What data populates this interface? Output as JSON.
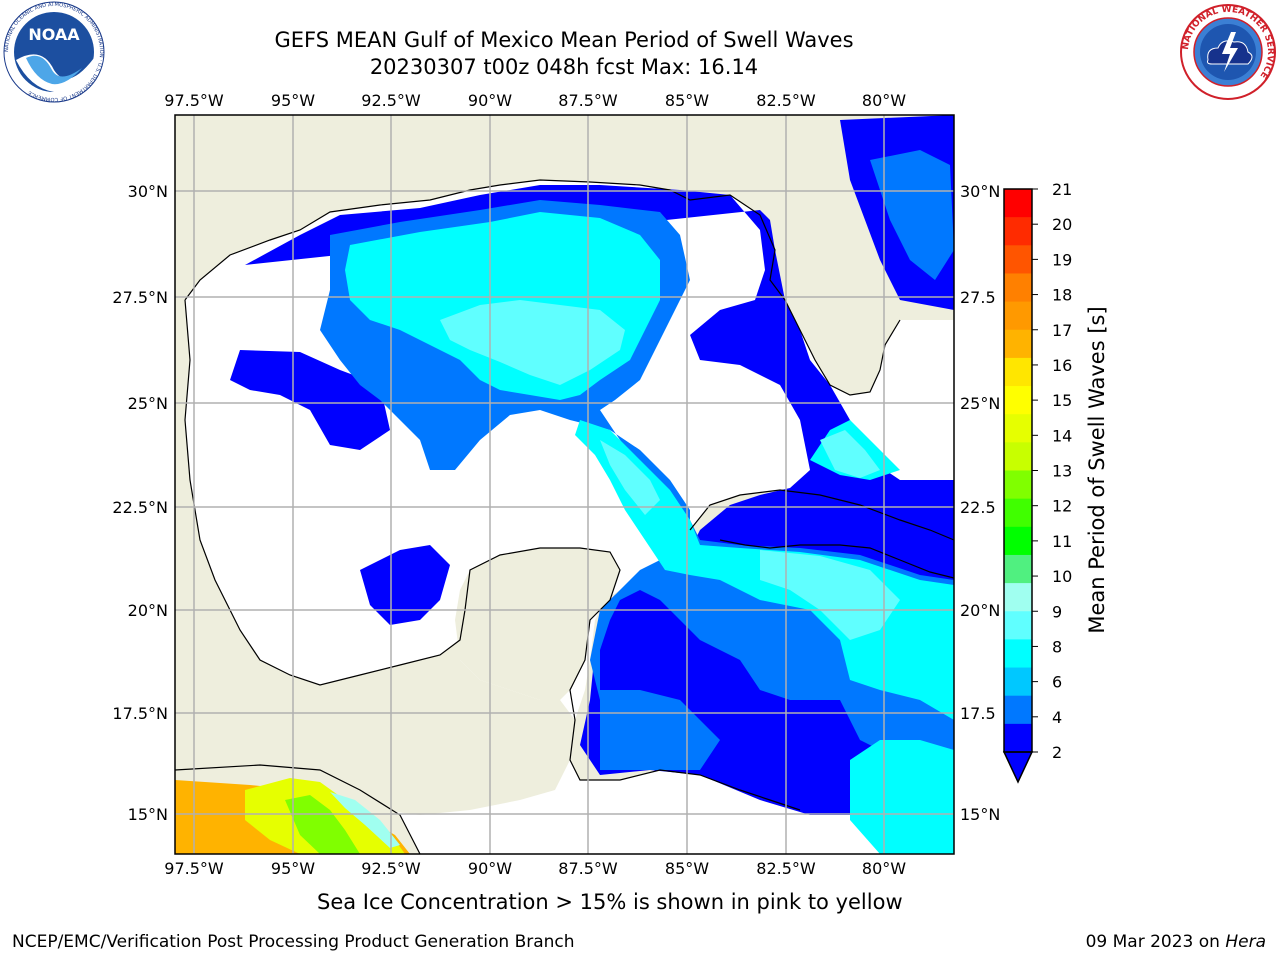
{
  "header": {
    "title_line1": "GEFS MEAN Gulf of Mexico Mean Period of Swell Waves",
    "title_line2": "20230307 t00z 048h fcst   Max: 16.14"
  },
  "logos": {
    "left": "noaa-logo",
    "left_text": "NOAA",
    "left_ring_text": "NATIONAL OCEANIC AND ATMOSPHERIC ADMINISTRATION · U.S. DEPARTMENT OF COMMERCE",
    "right": "nws-logo",
    "right_ring_text": "NATIONAL WEATHER SERVICE"
  },
  "map": {
    "lon_labels": [
      "97.5°W",
      "95°W",
      "92.5°W",
      "90°W",
      "87.5°W",
      "85°W",
      "82.5°W",
      "80°W"
    ],
    "lat_labels": [
      "30°N",
      "27.5°N",
      "25°N",
      "22.5°N",
      "20°N",
      "17.5°N",
      "15°N"
    ],
    "lat_labels_right": [
      "30°N",
      "27.5",
      "25°N",
      "22.5",
      "20°N",
      "17.5",
      "15°N"
    ],
    "colors": {
      "land": "#eeeedd",
      "ocean_low": "#ffffff",
      "grid": "#b0b0b0"
    }
  },
  "colorbar": {
    "label": "Mean Period of Swell Waves [s]",
    "ticks": [
      "21",
      "20",
      "19",
      "18",
      "17",
      "16",
      "15",
      "14",
      "13",
      "12",
      "11",
      "10",
      "9",
      "8",
      "6",
      "4",
      "2"
    ],
    "colors": [
      "#ff0000",
      "#ff2b00",
      "#ff5500",
      "#ff8000",
      "#ff9900",
      "#ffb300",
      "#ffe600",
      "#ffff00",
      "#e6ff00",
      "#c8ff00",
      "#80ff00",
      "#40ff00",
      "#00ff00",
      "#50f080",
      "#a0fff0",
      "#60ffff",
      "#00ffff",
      "#00c8ff",
      "#0078ff",
      "#0000ff"
    ]
  },
  "footer": {
    "note": "Sea Ice Concentration > 15% is shown in pink to yellow",
    "left": "NCEP/EMC/Verification Post Processing Product Generation Branch",
    "right_date": "09 Mar 2023 on ",
    "right_machine": "Hera"
  }
}
